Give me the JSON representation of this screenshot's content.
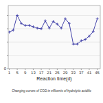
{
  "chart_data": {
    "type": "line",
    "x": [
      1,
      3,
      5,
      7,
      9,
      11,
      13,
      15,
      17,
      19,
      21,
      23,
      25,
      27,
      29,
      31,
      33,
      35,
      37,
      39,
      41,
      43,
      45
    ],
    "series": [
      {
        "values": [
          0.55,
          0.58,
          0.8,
          0.68,
          0.65,
          0.65,
          0.63,
          0.61,
          0.6,
          0.72,
          0.61,
          0.71,
          0.67,
          0.61,
          0.75,
          0.68,
          0.37,
          0.37,
          0.42,
          0.44,
          0.49,
          0.56,
          0.75
        ],
        "color": "#4444aa",
        "marker": "+"
      }
    ],
    "xlabel": "Reaction time(d)",
    "caption": "Changing curves of COD in effluents of hydrolytic acidific",
    "xlim": [
      0.5,
      46.5
    ],
    "ylim": [
      0.0,
      0.95
    ],
    "xticks": [
      1,
      5,
      9,
      13,
      17,
      21,
      25,
      29,
      33,
      37,
      41,
      45
    ],
    "yticks": [
      0,
      {
        "value": 0.2,
        "label": null
      },
      {
        "value": 0.4,
        "label": null
      },
      {
        "value": 0.6,
        "label": null
      },
      {
        "value": 0.8,
        "label": null
      }
    ],
    "grid": true
  }
}
